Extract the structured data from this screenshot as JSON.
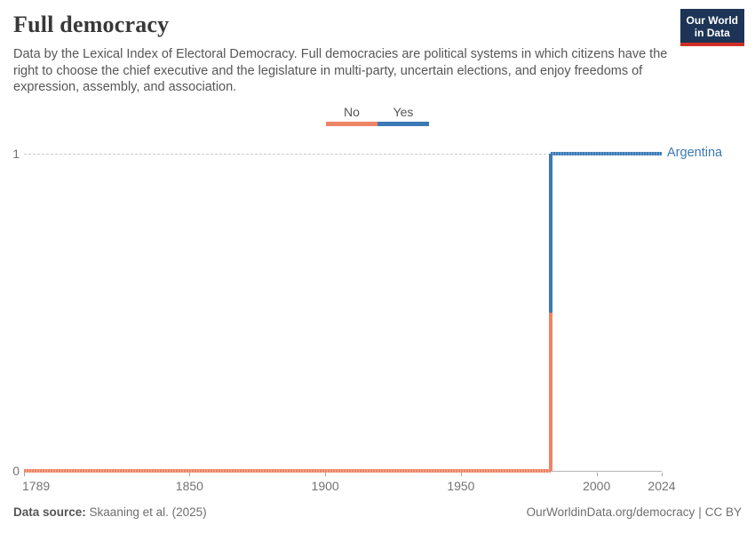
{
  "header": {
    "title": "Full democracy",
    "subtitle": "Data by the Lexical Index of Electoral Democracy. Full democracies are political systems in which citizens have the right to choose the chief executive and the legislature in multi-party, uncertain elections, and enjoy freedoms of expression, assembly, and association.",
    "logo": {
      "line1": "Our World",
      "line2": "in Data",
      "bg": "#1d3456",
      "accent": "#cf2e26"
    }
  },
  "legend": {
    "items": [
      {
        "label": "No",
        "color": "#ee8466"
      },
      {
        "label": "Yes",
        "color": "#3b79b5"
      }
    ]
  },
  "chart_data": {
    "type": "line",
    "subtype": "step",
    "entity": "Argentina",
    "title": "Full democracy",
    "xlim": [
      1789,
      2024
    ],
    "ylim": [
      0,
      1
    ],
    "x_ticks": [
      1789,
      1850,
      1900,
      1950,
      2000,
      2024
    ],
    "y_ticks": [
      0,
      1
    ],
    "grid": "dashed horizontal gridline at y=1, solid axis at y=0",
    "legend_position": "top-center",
    "transition_year": 1983,
    "series": [
      {
        "name": "No",
        "value": 0,
        "from_year": 1789,
        "to_year": 1983,
        "color": "#ee8466",
        "color_light": "#f5ab93"
      },
      {
        "name": "Yes",
        "value": 1,
        "from_year": 1983,
        "to_year": 2024,
        "color": "#3b79b5",
        "color_light": "#74a3cd"
      }
    ],
    "annotation": {
      "text": "Argentina",
      "color": "#3b79b5",
      "x": 2024,
      "y": 1
    }
  },
  "footer": {
    "source_label": "Data source:",
    "source_value": "Skaaning et al. (2025)",
    "link": "OurWorldinData.org/democracy",
    "separator": "|",
    "license": "CC BY"
  }
}
